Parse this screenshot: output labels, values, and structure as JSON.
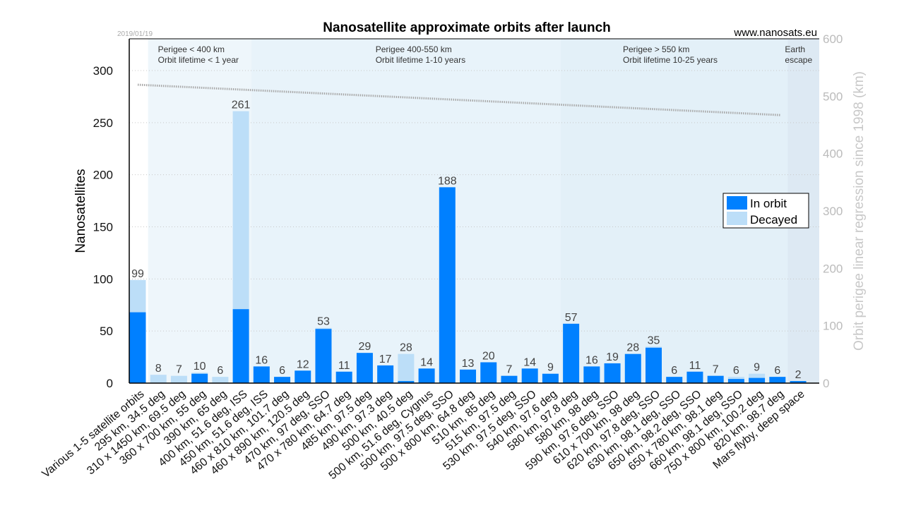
{
  "chart_data": {
    "type": "bar",
    "stacked": true,
    "title": "Nanosatellite approximate orbits after launch",
    "date": "2019/01/19",
    "source": "www.nanosats.eu",
    "ylabel": "Nanosatellites",
    "ylabel_right": "Orbit perigee linear regression since 1998 (km)",
    "ylim": [
      0,
      330
    ],
    "yticks": [
      0,
      50,
      100,
      150,
      200,
      250,
      300
    ],
    "ylim_right": [
      0,
      600
    ],
    "yticks_right": [
      0,
      100,
      200,
      300,
      400,
      500,
      600
    ],
    "grid": true,
    "legend": {
      "placement": "right",
      "entries": [
        "In orbit",
        "Decayed"
      ]
    },
    "colors": {
      "in_orbit": "#0080ff",
      "decayed": "#bcdef8",
      "trend": "#a8a8a8"
    },
    "regions": [
      {
        "line1": "Perigee < 400 km",
        "line2": "Orbit lifetime < 1 year",
        "from_index": 1,
        "to_index": 5,
        "color": "#eef6fb"
      },
      {
        "line1": "Perigee 400-550 km",
        "line2": "Orbit lifetime 1-10 years",
        "from_index": 6,
        "to_index": 20,
        "color": "#e8f3fa"
      },
      {
        "line1": "Perigee > 550 km",
        "line2": "Orbit lifetime 10-25 years",
        "from_index": 21,
        "to_index": 31,
        "color": "#e3f0f8"
      },
      {
        "line1": "Earth",
        "line2": "escape",
        "from_index": 32,
        "to_index": 32,
        "color": "#dde9f3"
      }
    ],
    "trend_line": {
      "start_km": 520,
      "end_km": 467
    },
    "categories": [
      "Various 1-5 satellite orbits",
      "295 km, 34.5 deg",
      "310 x 1450 km, 69.5 deg",
      "360 x 700 km, 55 deg",
      "390 km, 65 deg",
      "400 km, 51.6 deg, ISS",
      "450 km, 51.6 deg, ISS",
      "460 x 810 km, 101.7 deg",
      "460 x 890 km, 120.5 deg",
      "470 km, 97 deg, SSO",
      "470 x 780 km, 64.7 deg",
      "485 km, 97.5 deg",
      "490 km, 97.3 deg",
      "500 km, 40.5 deg",
      "500 km, 51.6 deg, Cygnus",
      "500 km, 97.5 deg, SSO",
      "500 x 800 km, 64.8 deg",
      "510 km, 85 deg",
      "515 km, 97.5 deg",
      "530 km, 97.5 deg, SSO",
      "540 km, 97.6 deg",
      "580 km, 97.8 deg",
      "580 km, 98 deg",
      "590 km, 97.6 deg, SSO",
      "610 x 700 km, 98 deg",
      "620 km, 97.8 deg, SSO",
      "630 km, 98.1 deg, SSO",
      "650 km, 98.2 deg, SSO",
      "650 x 780 km, 98.1 deg",
      "660 km, 98.1 deg, SSO",
      "750 x 800 km, 100.2 deg",
      "820 km, 98.7 deg",
      "Mars flyby, deep space"
    ],
    "totals": [
      99,
      8,
      7,
      10,
      6,
      261,
      16,
      6,
      12,
      53,
      11,
      29,
      17,
      28,
      14,
      188,
      13,
      20,
      7,
      14,
      9,
      57,
      16,
      19,
      28,
      35,
      6,
      11,
      7,
      6,
      9,
      6,
      2
    ],
    "series": [
      {
        "name": "In orbit",
        "values": [
          68,
          0,
          0,
          9,
          0,
          71,
          16,
          6,
          12,
          52,
          11,
          29,
          17,
          2,
          14,
          188,
          13,
          20,
          7,
          14,
          9,
          57,
          16,
          19,
          28,
          34,
          6,
          11,
          7,
          4,
          5,
          6,
          2
        ]
      },
      {
        "name": "Decayed",
        "values": [
          31,
          8,
          7,
          1,
          6,
          190,
          0,
          0,
          0,
          1,
          0,
          0,
          0,
          26,
          0,
          0,
          0,
          0,
          0,
          0,
          0,
          0,
          0,
          0,
          0,
          1,
          0,
          0,
          0,
          2,
          4,
          0,
          0
        ]
      }
    ]
  }
}
